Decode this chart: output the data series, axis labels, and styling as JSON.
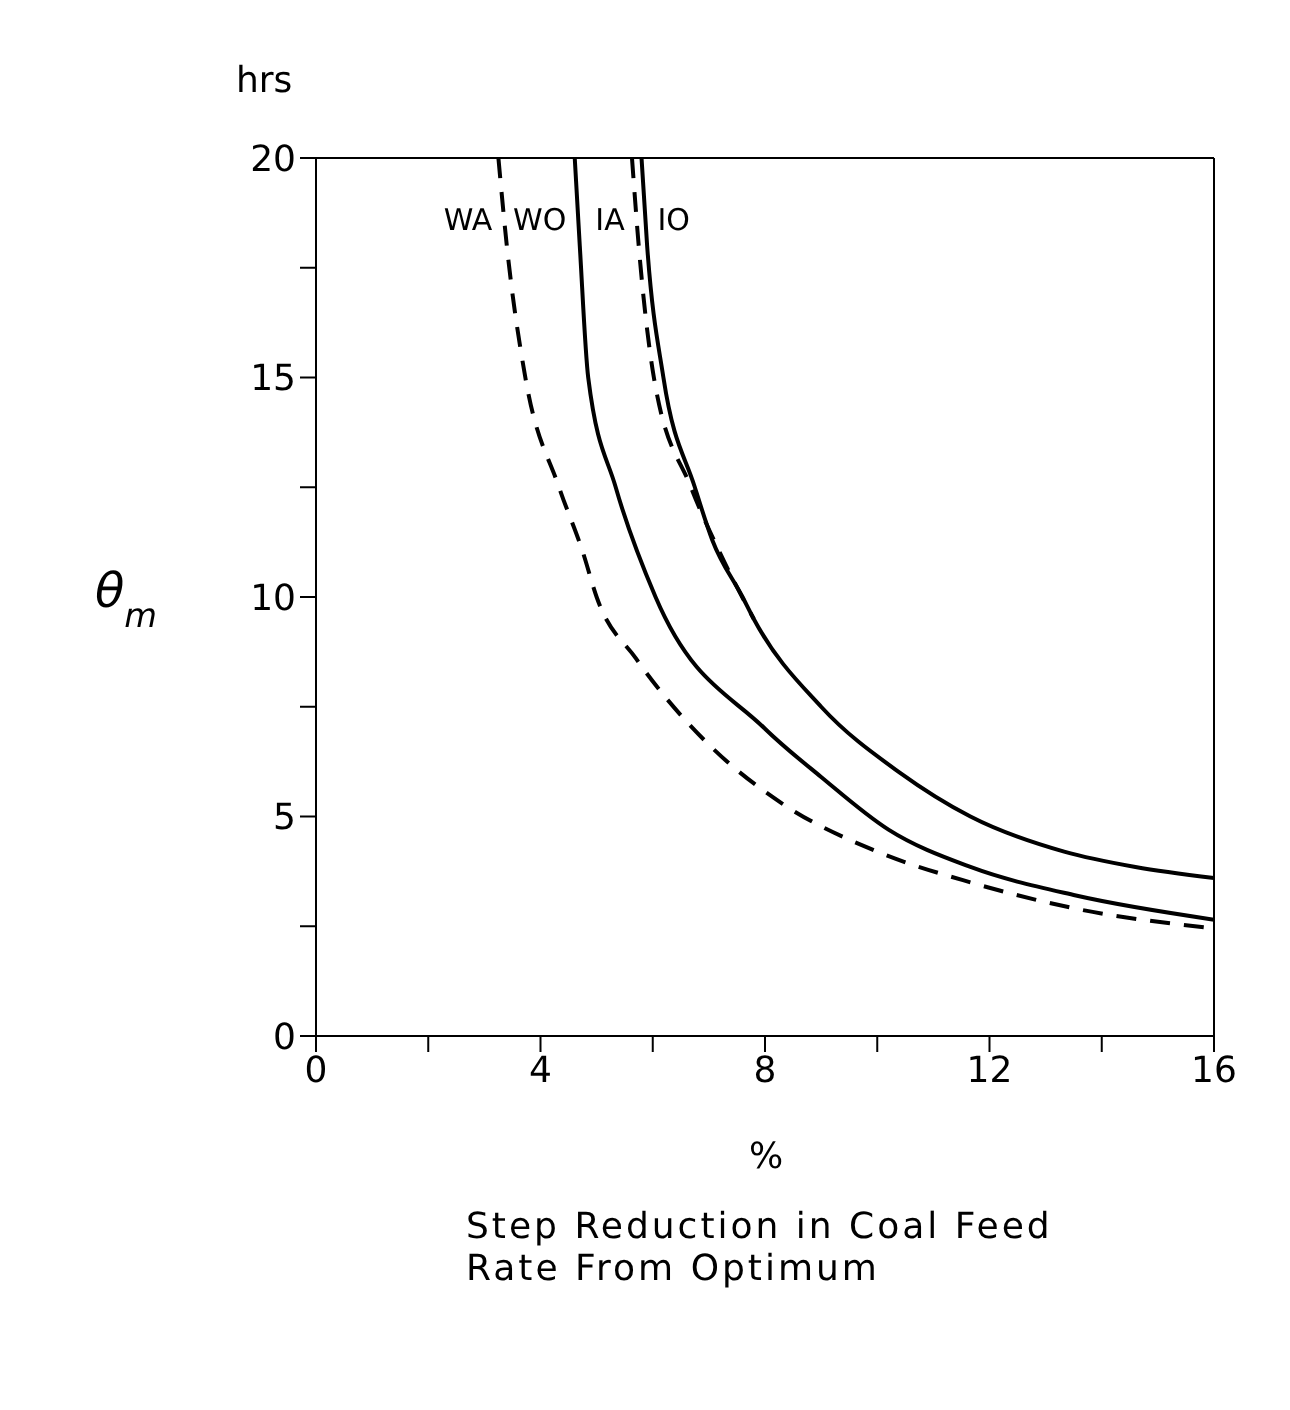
{
  "chart_data": {
    "type": "line",
    "xlabel": "Step Reduction in Coal Feed Rate From Optimum",
    "ylabel": "θ$_{m}$",
    "annotations": [
      "hrs",
      "%"
    ],
    "xlim": [
      0,
      16
    ],
    "xticks": [
      0,
      {
        "value": 2,
        "label": null
      },
      4,
      {
        "value": 6,
        "label": null
      },
      8,
      {
        "value": 10,
        "label": null
      },
      12,
      {
        "value": 14,
        "label": null
      },
      16
    ],
    "ylim": [
      0,
      20
    ],
    "yticks": [
      0,
      {
        "value": 2.5,
        "label": null
      },
      5,
      {
        "value": 7.5,
        "label": null
      },
      10,
      {
        "value": 12.5,
        "label": null
      },
      15,
      {
        "value": 17.5,
        "label": null
      },
      20
    ],
    "marker": "none",
    "series": [
      {
        "name": "WA",
        "color": "#000000",
        "line_style": "dashed",
        "x": [
          3.25,
          3.4,
          3.73,
          4.33,
          4.76,
          5.0,
          5.7,
          6.95,
          8.3,
          10,
          11.66,
          13.54,
          16
        ],
        "values": [
          20,
          18,
          15,
          12.5,
          11,
          10,
          8.6,
          6.7,
          5.3,
          4.2,
          3.5,
          2.9,
          2.45
        ]
      },
      {
        "name": "WO",
        "color": "#000000",
        "line_style": "solid",
        "x": [
          4.61,
          4.7,
          4.85,
          5.34,
          6.05,
          8.0,
          9,
          10.2,
          11.66,
          13.54,
          16
        ],
        "values": [
          20,
          18,
          15,
          12.5,
          10,
          7.0,
          5.9,
          4.7,
          3.85,
          3.2,
          2.65
        ]
      },
      {
        "name": "IA",
        "color": "#000000",
        "line_style": "dashed",
        "x": [
          5.63,
          5.75,
          6.02,
          6.68,
          7.2,
          7.8
        ],
        "values": [
          20,
          18,
          15,
          12.5,
          11,
          9.5
        ]
      },
      {
        "name": "IO",
        "color": "#000000",
        "line_style": "solid",
        "x": [
          5.8,
          5.9,
          6.19,
          6.75,
          7.06,
          7.6,
          7.8,
          9.0,
          10.4,
          11.66,
          13.33,
          14.6,
          16
        ],
        "values": [
          20,
          18,
          15,
          12.5,
          11.3,
          10,
          9.5,
          7.5,
          6.0,
          5.0,
          4.2,
          3.85,
          3.6
        ]
      }
    ]
  }
}
